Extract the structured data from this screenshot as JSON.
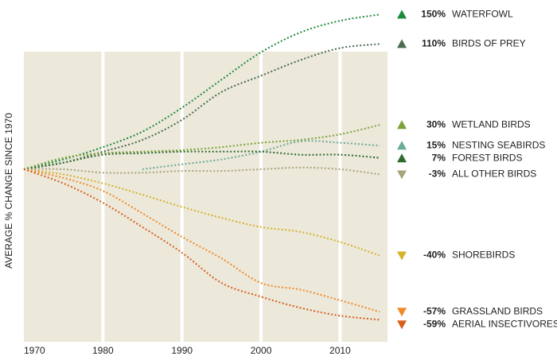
{
  "chart_data": {
    "type": "line",
    "y_label": "AVERAGE % CHANGE SINCE 1970",
    "x": [
      1970,
      1975,
      1980,
      1985,
      1990,
      1995,
      2000,
      2005,
      2010,
      2015
    ],
    "xlim": [
      1970,
      2016
    ],
    "xticks": [
      1970,
      1980,
      1990,
      2000,
      2010
    ],
    "ylim": [
      -64,
      160
    ],
    "log_scale": true,
    "grid": true,
    "series": [
      {
        "name": "WATERFOWL",
        "color": "#1e8a3c",
        "values": [
          0,
          6,
          14,
          25,
          44,
          70,
          100,
          125,
          141,
          150
        ],
        "value_labels": [
          null,
          null,
          null,
          null,
          null,
          null,
          null,
          null,
          null,
          "150%"
        ]
      },
      {
        "name": "BIRDS OF PREY",
        "color": "#4a6b4f",
        "values": [
          0,
          4,
          11,
          19,
          34,
          58,
          74,
          91,
          105,
          110
        ],
        "value_labels": [
          null,
          null,
          null,
          null,
          null,
          null,
          null,
          null,
          null,
          "110%"
        ]
      },
      {
        "name": "WETLAND BIRDS",
        "color": "#7ba33a",
        "values": [
          0,
          7,
          10,
          11,
          12,
          14,
          17,
          19,
          23,
          30
        ],
        "value_labels": [
          null,
          null,
          null,
          null,
          null,
          null,
          null,
          null,
          null,
          "30%"
        ]
      },
      {
        "name": "NESTING SEABIRDS",
        "color": "#6aab9a",
        "values": [
          null,
          null,
          null,
          0,
          3,
          6,
          11,
          18,
          17,
          15
        ],
        "value_labels": [
          null,
          null,
          null,
          null,
          null,
          null,
          null,
          null,
          null,
          "15%"
        ]
      },
      {
        "name": "FOREST BIRDS",
        "color": "#2e6b30",
        "values": [
          0,
          4,
          9,
          10,
          11,
          11,
          11,
          9,
          9,
          7
        ],
        "value_labels": [
          null,
          null,
          null,
          null,
          null,
          null,
          null,
          null,
          null,
          "7%"
        ]
      },
      {
        "name": "ALL OTHER BIRDS",
        "color": "#a8a57e",
        "values": [
          0,
          0,
          -2,
          -2,
          -1,
          -1,
          0,
          1,
          0,
          -3
        ],
        "value_labels": [
          null,
          null,
          null,
          null,
          null,
          null,
          null,
          null,
          null,
          "-3%"
        ]
      },
      {
        "name": "SHOREBIRDS",
        "color": "#d4b22a",
        "values": [
          0,
          -3,
          -8,
          -14,
          -20,
          -25,
          -29,
          -31,
          -35,
          -40
        ],
        "value_labels": [
          null,
          null,
          null,
          null,
          null,
          null,
          null,
          null,
          null,
          "-40%"
        ]
      },
      {
        "name": "GRASSLAND BIRDS",
        "color": "#f08a28",
        "values": [
          0,
          -5,
          -12,
          -23,
          -33,
          -41,
          -49,
          -51,
          -54,
          -57
        ],
        "value_labels": [
          null,
          null,
          null,
          null,
          null,
          null,
          null,
          null,
          null,
          "-57%"
        ]
      },
      {
        "name": "AERIAL INSECTIVORES",
        "color": "#d65f1e",
        "values": [
          0,
          -8,
          -18,
          -29,
          -39,
          -49,
          -53,
          -56,
          -58,
          -59
        ],
        "value_labels": [
          null,
          null,
          null,
          null,
          null,
          null,
          null,
          null,
          null,
          "-59%"
        ]
      }
    ]
  }
}
